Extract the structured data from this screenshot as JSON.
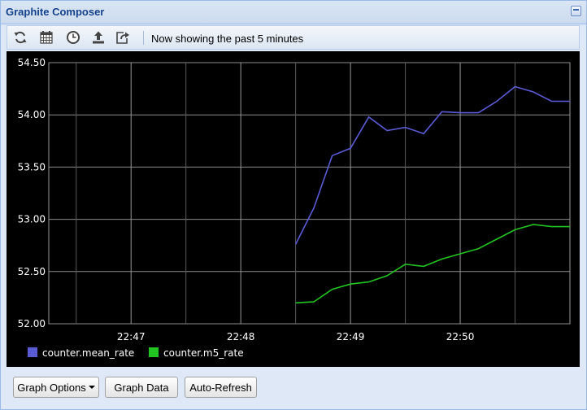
{
  "window": {
    "title": "Graphite Composer"
  },
  "toolbar": {
    "status": "Now showing the past 5 minutes",
    "icons": [
      "refresh-icon",
      "calendar-icon",
      "clock-icon",
      "upload-icon",
      "share-icon"
    ]
  },
  "chart_data": {
    "type": "line",
    "background": "#000000",
    "grid": true,
    "legend_placement": "bottom-left",
    "ylim": [
      52.0,
      54.5
    ],
    "yticks": [
      "52.00",
      "52.50",
      "53.00",
      "53.50",
      "54.00",
      "54.50"
    ],
    "xlim": [
      "22:46:15",
      "22:51:00"
    ],
    "xticks": [
      "22:47",
      "22:48",
      "22:49",
      "22:50"
    ],
    "series": [
      {
        "name": "counter.mean_rate",
        "color": "#5b5bd6",
        "points": [
          [
            "22:48:30",
            52.76
          ],
          [
            "22:48:40",
            53.11
          ],
          [
            "22:48:50",
            53.61
          ],
          [
            "22:49:00",
            53.68
          ],
          [
            "22:49:10",
            53.98
          ],
          [
            "22:49:20",
            53.85
          ],
          [
            "22:49:30",
            53.88
          ],
          [
            "22:49:40",
            53.82
          ],
          [
            "22:49:50",
            54.03
          ],
          [
            "22:50:00",
            54.02
          ],
          [
            "22:50:10",
            54.02
          ],
          [
            "22:50:20",
            54.13
          ],
          [
            "22:50:30",
            54.27
          ],
          [
            "22:50:40",
            54.22
          ],
          [
            "22:50:50",
            54.13
          ],
          [
            "22:51:00",
            54.13
          ]
        ]
      },
      {
        "name": "counter.m5_rate",
        "color": "#22c422",
        "points": [
          [
            "22:48:30",
            52.2
          ],
          [
            "22:48:40",
            52.21
          ],
          [
            "22:48:50",
            52.33
          ],
          [
            "22:49:00",
            52.38
          ],
          [
            "22:49:10",
            52.4
          ],
          [
            "22:49:20",
            52.46
          ],
          [
            "22:49:30",
            52.57
          ],
          [
            "22:49:40",
            52.55
          ],
          [
            "22:49:50",
            52.62
          ],
          [
            "22:50:00",
            52.67
          ],
          [
            "22:50:10",
            52.72
          ],
          [
            "22:50:20",
            52.81
          ],
          [
            "22:50:30",
            52.9
          ],
          [
            "22:50:40",
            52.95
          ],
          [
            "22:50:50",
            52.93
          ],
          [
            "22:51:00",
            52.93
          ]
        ]
      }
    ]
  },
  "buttons": {
    "graph_options": "Graph Options",
    "graph_data": "Graph Data",
    "auto_refresh": "Auto-Refresh"
  }
}
